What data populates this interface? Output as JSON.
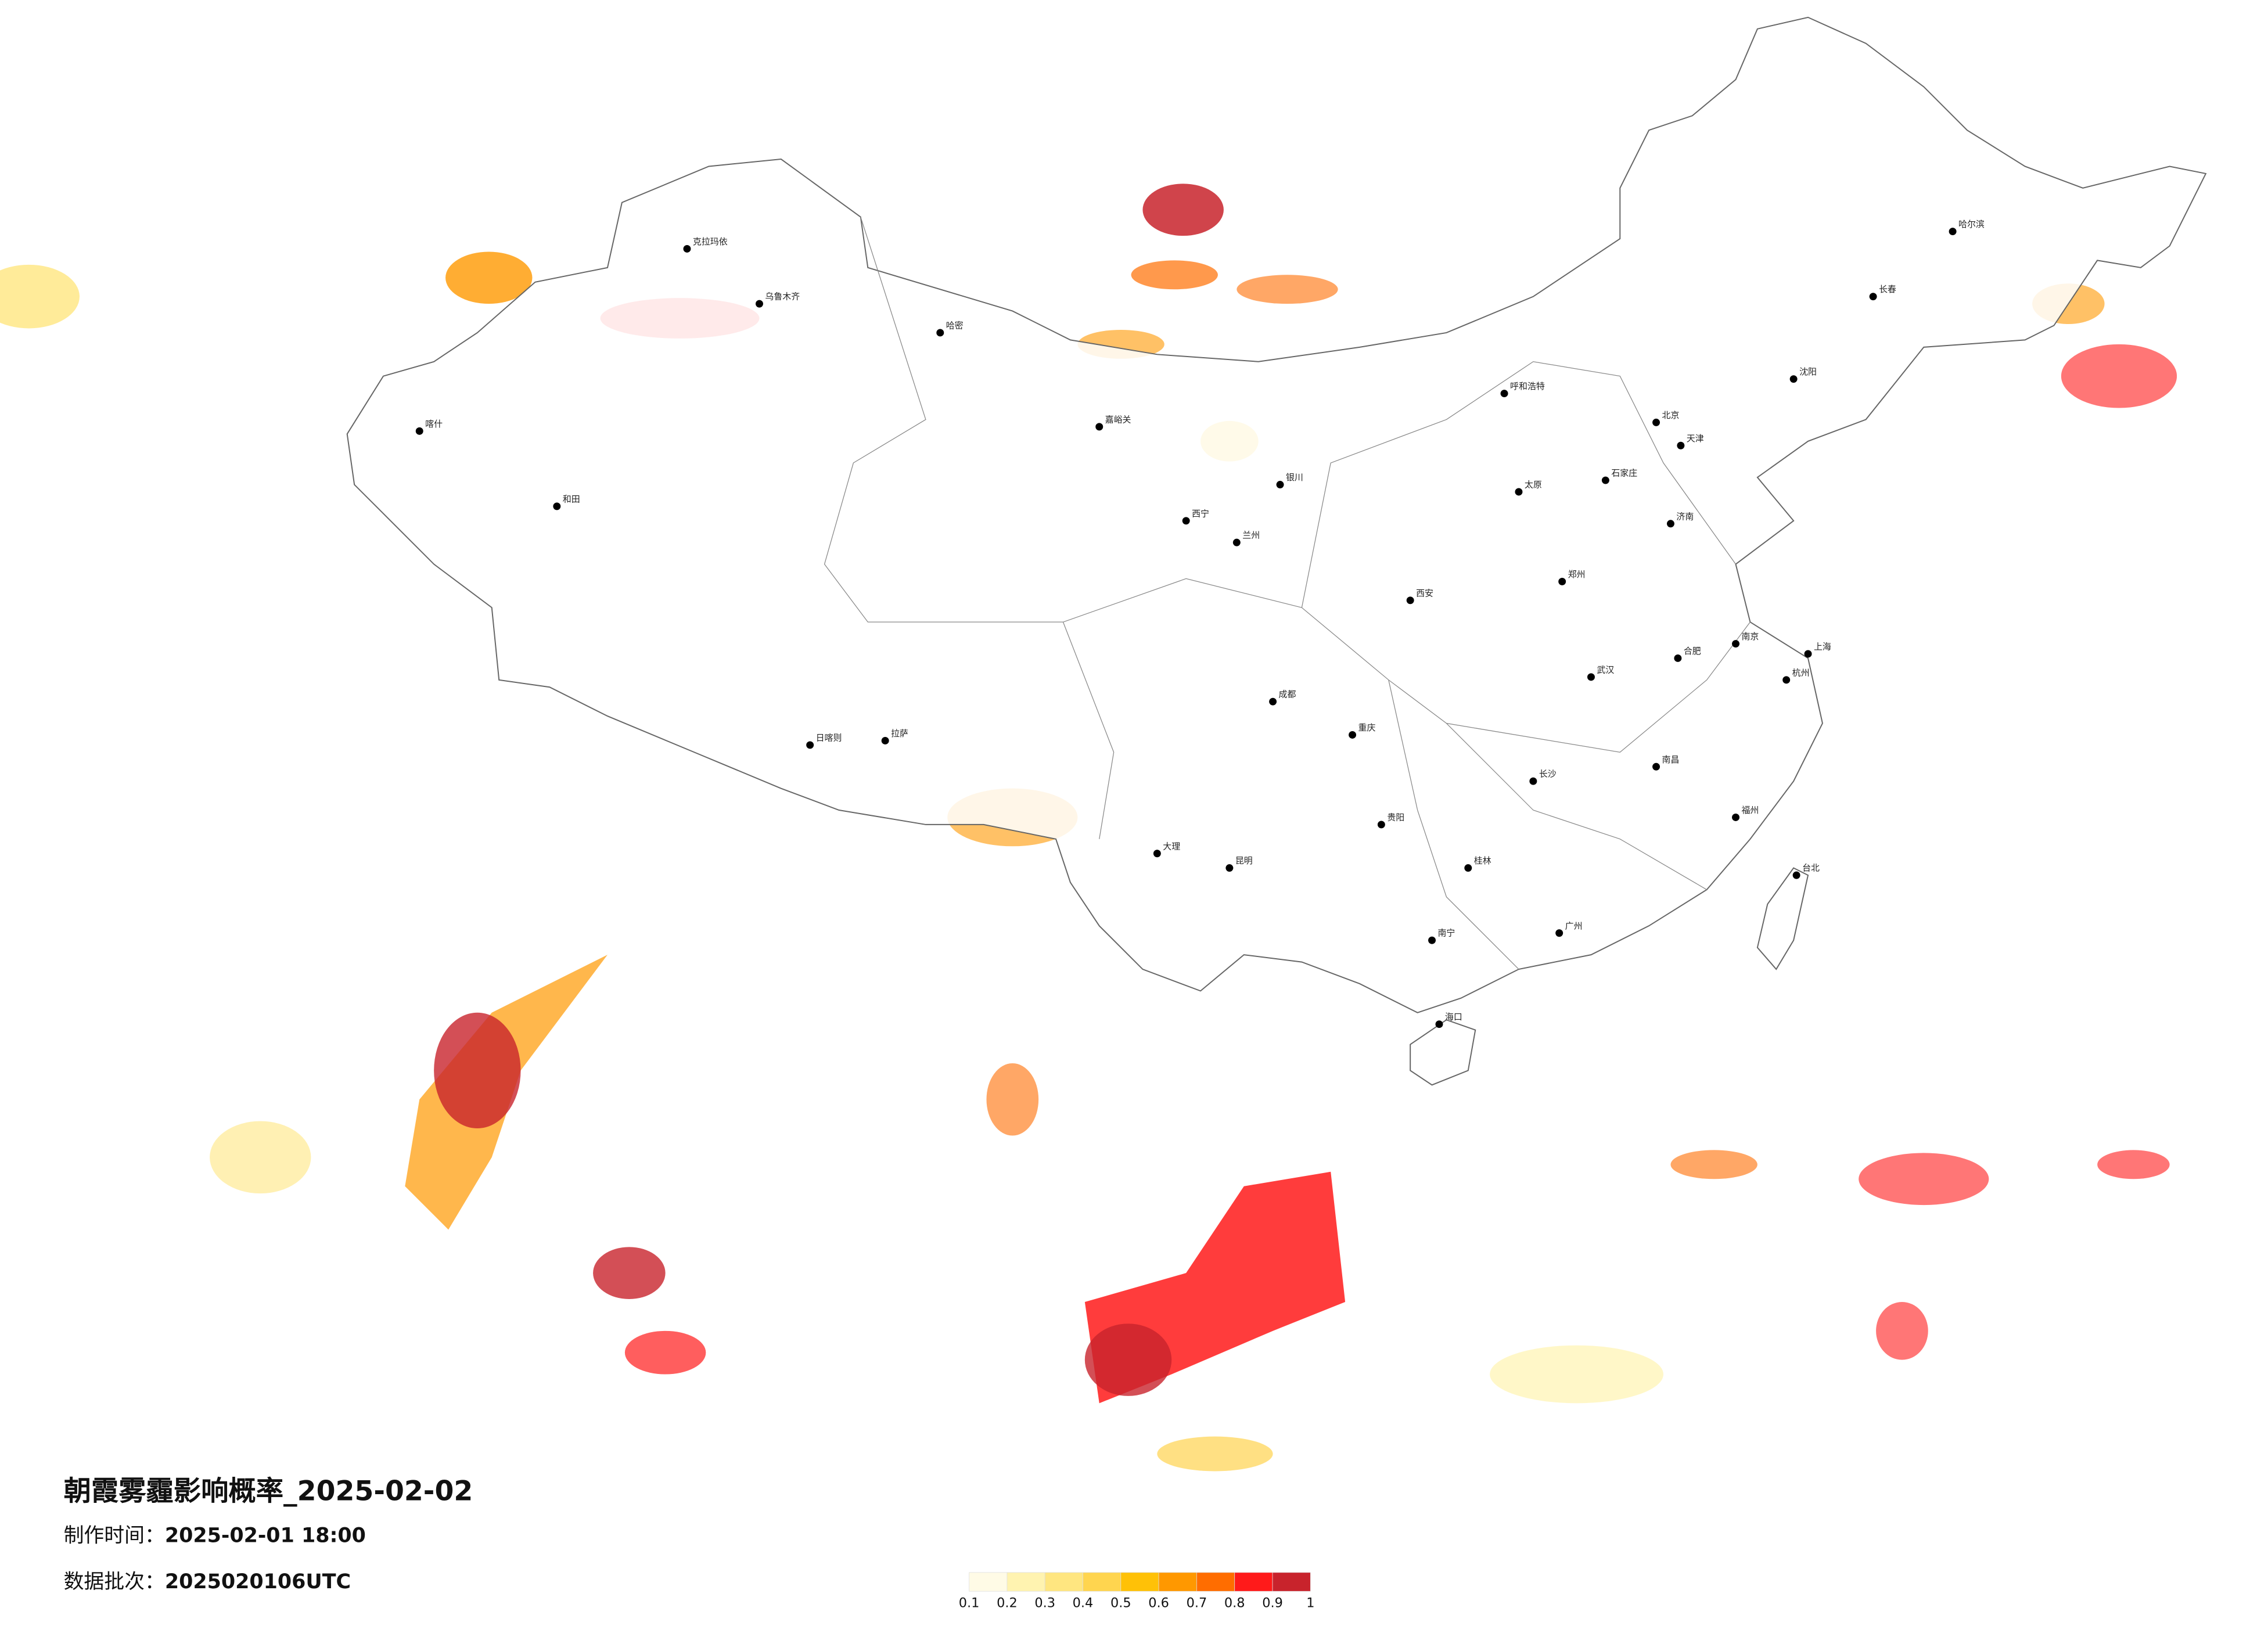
{
  "map": {
    "title": "朝霞雾霾影响概率_2025-02-02",
    "issue_time_label": "制作时间：",
    "issue_time": "2025-02-01 18:00",
    "batch_label": "数据批次：",
    "batch": "2025020106UTC",
    "cities": [
      "北京",
      "天津",
      "石家庄",
      "太原",
      "呼和浩特",
      "沈阳",
      "长春",
      "哈尔滨",
      "济南",
      "郑州",
      "西安",
      "兰州",
      "西宁",
      "银川",
      "乌鲁木齐",
      "拉萨",
      "成都",
      "重庆",
      "贵阳",
      "昆明",
      "南宁",
      "广州",
      "长沙",
      "武汉",
      "南昌",
      "福州",
      "杭州",
      "上海",
      "南京",
      "合肥",
      "海口",
      "台北",
      "喀什",
      "和田",
      "克拉玛依",
      "哈密",
      "嘉峪关",
      "日喀则",
      "大理",
      "桂林"
    ],
    "legend": {
      "ticks": [
        0.1,
        0.2,
        0.3,
        0.4,
        0.5,
        0.6,
        0.7,
        0.8,
        0.9,
        1
      ],
      "colors": [
        "#fffbe6",
        "#fff3b0",
        "#ffe680",
        "#ffd54f",
        "#ffc107",
        "#ff9800",
        "#ff6d00",
        "#ff1a1a",
        "#c8232c"
      ]
    }
  }
}
